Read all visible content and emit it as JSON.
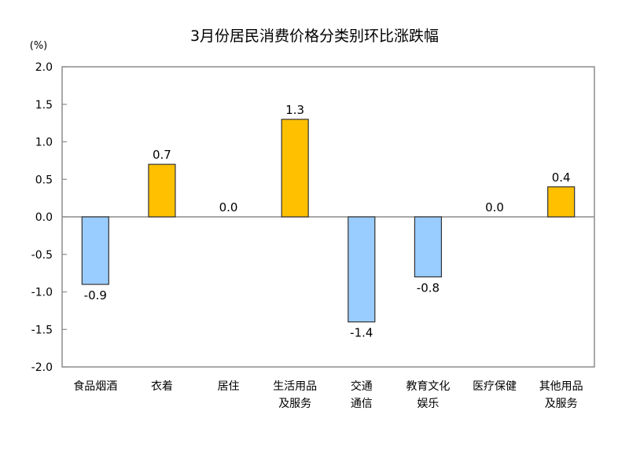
{
  "chart_data": {
    "type": "bar",
    "title": "3月份居民消费价格分类别环比涨跌幅",
    "ylabel": "(%)",
    "xlabel": "",
    "ylim": [
      -2.0,
      2.0
    ],
    "yticks": [
      "2.0",
      "1.5",
      "1.0",
      "0.5",
      "0.0",
      "-0.5",
      "-1.0",
      "-1.5",
      "-2.0"
    ],
    "categories": [
      [
        "食品烟酒"
      ],
      [
        "衣着"
      ],
      [
        "居住"
      ],
      [
        "生活用品",
        "及服务"
      ],
      [
        "交通",
        "通信"
      ],
      [
        "教育文化",
        "娱乐"
      ],
      [
        "医疗保健"
      ],
      [
        "其他用品",
        "及服务"
      ]
    ],
    "values": [
      -0.9,
      0.7,
      0.0,
      1.3,
      -1.4,
      -0.8,
      0.0,
      0.4
    ],
    "data_labels": [
      "-0.9",
      "0.7",
      "0.0",
      "1.3",
      "-1.4",
      "-0.8",
      "0.0",
      "0.4"
    ],
    "colors": {
      "positive": "#FFC000",
      "negative": "#99CCFF",
      "bar_border": "#333333",
      "axis": "#8C8C8C"
    },
    "grid": false,
    "legend": "none"
  }
}
